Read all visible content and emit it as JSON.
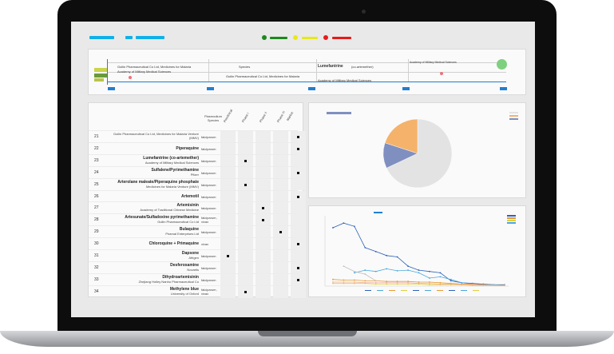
{
  "legend": {
    "colors": [
      "#12b0e8",
      "#12b0e8",
      "#12b0e8",
      "#1a8a1a",
      "#e8e81a",
      "#e81a1a"
    ],
    "dots": [
      "#1a8a1a",
      "#e8e81a",
      "#e81a1a"
    ]
  },
  "timeline": {
    "row1_sponsor": "Guilin Pharmaceutical Co Ltd, Medicines for Malaria",
    "row1b_sponsor": "Academy of Military Medical Sciences",
    "col_species": "Species",
    "mid_sponsor": "Guilin Pharmaceutical Co Ltd, Medicines for Malaria",
    "drug": "Lumefantrine",
    "drug_suffix": "(co-artemether)",
    "right_sponsor": "Academy of Military Medical Sciences",
    "bottom_sponsor": "Academy of Military Medical Sciences"
  },
  "table": {
    "col_species": "Plasmodium Species",
    "phases": [
      "Preclinical",
      "Phase I",
      "Phase II",
      "Phase III",
      "Market"
    ],
    "rows": [
      {
        "num": "21",
        "drug": "",
        "sponsor": "Guilin Pharmaceutical Co Ltd, Medicines for Malaria Venture (MMV)",
        "species": "falciparum",
        "phase": 4
      },
      {
        "num": "22",
        "drug": "Piperaquine",
        "sponsor": "",
        "species": "falciparum",
        "phase": 4
      },
      {
        "num": "23",
        "drug": "Lumefantrine (co-artemether)",
        "sponsor": "Academy of Military Medical Sciences",
        "species": "falciparum",
        "phase": 1
      },
      {
        "num": "24",
        "drug": "Sulfalene/Pyrimethamine",
        "sponsor": "Pfizer",
        "species": "falciparum",
        "phase": 4
      },
      {
        "num": "25",
        "drug": "Arterolane maleate/Piperaquine phosphate",
        "sponsor": "Medicines for Malaria Venture (MMV)",
        "species": "falciparum",
        "phase": 1
      },
      {
        "num": "26",
        "drug": "Artemotil",
        "sponsor": "",
        "species": "falciparum",
        "phase": 4
      },
      {
        "num": "27",
        "drug": "Artemisinin",
        "sponsor": "Academy of Traditional Chinese Medicine",
        "species": "falciparum",
        "phase": 2
      },
      {
        "num": "28",
        "drug": "Artesunate/Sulfadoxine pyrimethamine",
        "sponsor": "Guilin Pharmaceutical Co Ltd",
        "species": "falciparum, vivax",
        "phase": 2
      },
      {
        "num": "29",
        "drug": "Bulaquine",
        "sponsor": "Piramal Enterprises Ltd",
        "species": "falciparum",
        "phase": 3
      },
      {
        "num": "30",
        "drug": "Chloroquine + Primaquine",
        "sponsor": "",
        "species": "vivax",
        "phase": 4
      },
      {
        "num": "31",
        "drug": "Dapsone",
        "sponsor": "Afrigen",
        "species": "falciparum",
        "phase": 0
      },
      {
        "num": "32",
        "drug": "Desferoxamine",
        "sponsor": "Novartis",
        "species": "falciparum",
        "phase": 4
      },
      {
        "num": "33",
        "drug": "Dihydroartemisinin",
        "sponsor": "Zhejiang Holley Nanhu Pharmaceutical Co",
        "species": "falciparum",
        "phase": 4
      },
      {
        "num": "34",
        "drug": "Methylene blue",
        "sponsor": "University of Oxford",
        "species": "falciparum, vivax",
        "phase": 1
      }
    ]
  },
  "pie": {
    "chart_data": {
      "type": "pie",
      "slices": [
        {
          "label": "",
          "value": 68,
          "color": "#e3e3e3"
        },
        {
          "label": "",
          "value": 12,
          "color": "#7f8fc0"
        },
        {
          "label": "",
          "value": 20,
          "color": "#f5b26b"
        }
      ]
    }
  },
  "linechart": {
    "chart_data": {
      "type": "line",
      "x": [
        1,
        2,
        3,
        4,
        5,
        6,
        7,
        8,
        9,
        10,
        11,
        12,
        13,
        14,
        15,
        16,
        17
      ],
      "series": [
        {
          "color": "#2e62b8",
          "values": [
            88,
            95,
            90,
            58,
            52,
            46,
            44,
            30,
            24,
            22,
            20,
            8,
            5,
            4,
            3,
            2,
            2
          ]
        },
        {
          "color": "#4aa8dd",
          "values": [
            null,
            null,
            20,
            24,
            22,
            26,
            23,
            24,
            20,
            12,
            14,
            10,
            5,
            3,
            2,
            2,
            1
          ]
        },
        {
          "color": "#e89a30",
          "values": [
            10,
            9,
            9,
            8,
            8,
            7,
            7,
            7,
            6,
            6,
            5,
            4,
            3,
            3,
            2,
            1,
            1
          ]
        },
        {
          "color": "#e0d040",
          "values": [
            4,
            4,
            4,
            4,
            3,
            3,
            3,
            3,
            3,
            2,
            2,
            2,
            2,
            1,
            1,
            1,
            1
          ]
        },
        {
          "color": "#c0c0c0",
          "values": [
            null,
            30,
            22,
            18,
            8,
            null,
            null,
            null,
            null,
            null,
            null,
            null,
            null,
            null,
            null,
            null,
            null
          ]
        },
        {
          "color": "#f2b0a0",
          "values": [
            6,
            6,
            6,
            5,
            5,
            5,
            5,
            5,
            4,
            4,
            3,
            3,
            2,
            2,
            1,
            1,
            1
          ]
        }
      ],
      "ylim": [
        0,
        100
      ]
    }
  }
}
